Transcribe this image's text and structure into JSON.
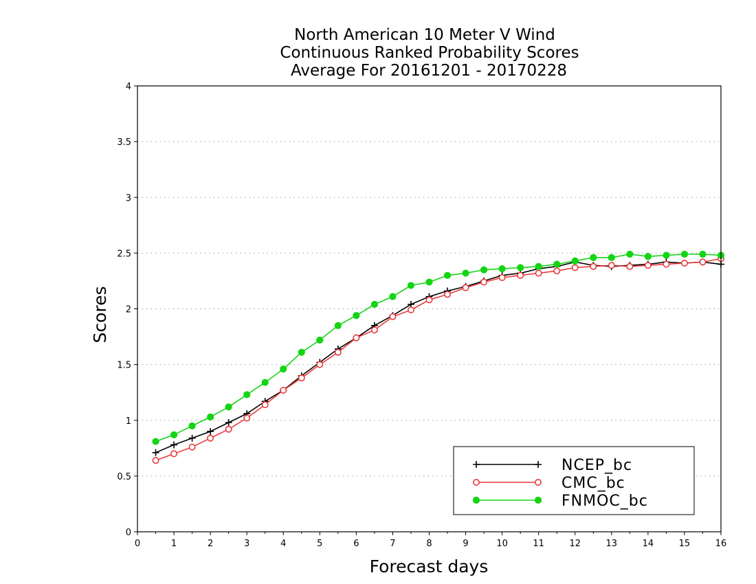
{
  "chart_data": {
    "type": "line",
    "title": [
      "North American 10 Meter V Wind",
      "Continuous Ranked Probability Scores",
      "Average For 20161201 - 20170228"
    ],
    "xlabel": "Forecast days",
    "ylabel": "Scores",
    "xlim": [
      0,
      16
    ],
    "ylim": [
      0,
      4
    ],
    "xticks": [
      "0",
      "1",
      "2",
      "3",
      "4",
      "5",
      "6",
      "7",
      "8",
      "9",
      "10",
      "11",
      "12",
      "13",
      "14",
      "15",
      "16"
    ],
    "yticks": [
      "0",
      "0.5",
      "1",
      "1.5",
      "2",
      "2.5",
      "3",
      "3.5",
      "4"
    ],
    "grid": "horizontal dotted",
    "legend_position": "bottom-right",
    "x": [
      0.5,
      1,
      1.5,
      2,
      2.5,
      3,
      3.5,
      4,
      4.5,
      5,
      5.5,
      6,
      6.5,
      7,
      7.5,
      8,
      8.5,
      9,
      9.5,
      10,
      10.5,
      11,
      11.5,
      12,
      12.5,
      13,
      13.5,
      14,
      14.5,
      15,
      15.5,
      16
    ],
    "series": [
      {
        "name": "NCEP_bc",
        "color": "#000000",
        "marker": "plus",
        "values": [
          0.71,
          0.78,
          0.84,
          0.9,
          0.98,
          1.06,
          1.17,
          1.27,
          1.4,
          1.52,
          1.64,
          1.74,
          1.85,
          1.94,
          2.04,
          2.11,
          2.16,
          2.2,
          2.25,
          2.3,
          2.32,
          2.36,
          2.38,
          2.42,
          2.39,
          2.38,
          2.39,
          2.4,
          2.42,
          2.41,
          2.42,
          2.4
        ]
      },
      {
        "name": "CMC_bc",
        "color": "#e8393c",
        "marker": "open-circle",
        "values": [
          0.64,
          0.7,
          0.76,
          0.84,
          0.92,
          1.02,
          1.14,
          1.27,
          1.38,
          1.5,
          1.61,
          1.74,
          1.81,
          1.93,
          1.99,
          2.08,
          2.13,
          2.19,
          2.24,
          2.28,
          2.3,
          2.32,
          2.34,
          2.37,
          2.38,
          2.39,
          2.38,
          2.39,
          2.4,
          2.41,
          2.42,
          2.45
        ]
      },
      {
        "name": "FNMOC_bc",
        "color": "#14d414",
        "marker": "filled-circle",
        "values": [
          0.81,
          0.87,
          0.95,
          1.03,
          1.12,
          1.23,
          1.34,
          1.46,
          1.61,
          1.72,
          1.85,
          1.94,
          2.04,
          2.11,
          2.21,
          2.24,
          2.3,
          2.32,
          2.35,
          2.36,
          2.37,
          2.38,
          2.4,
          2.43,
          2.46,
          2.46,
          2.49,
          2.47,
          2.48,
          2.49,
          2.49,
          2.48
        ]
      }
    ]
  }
}
